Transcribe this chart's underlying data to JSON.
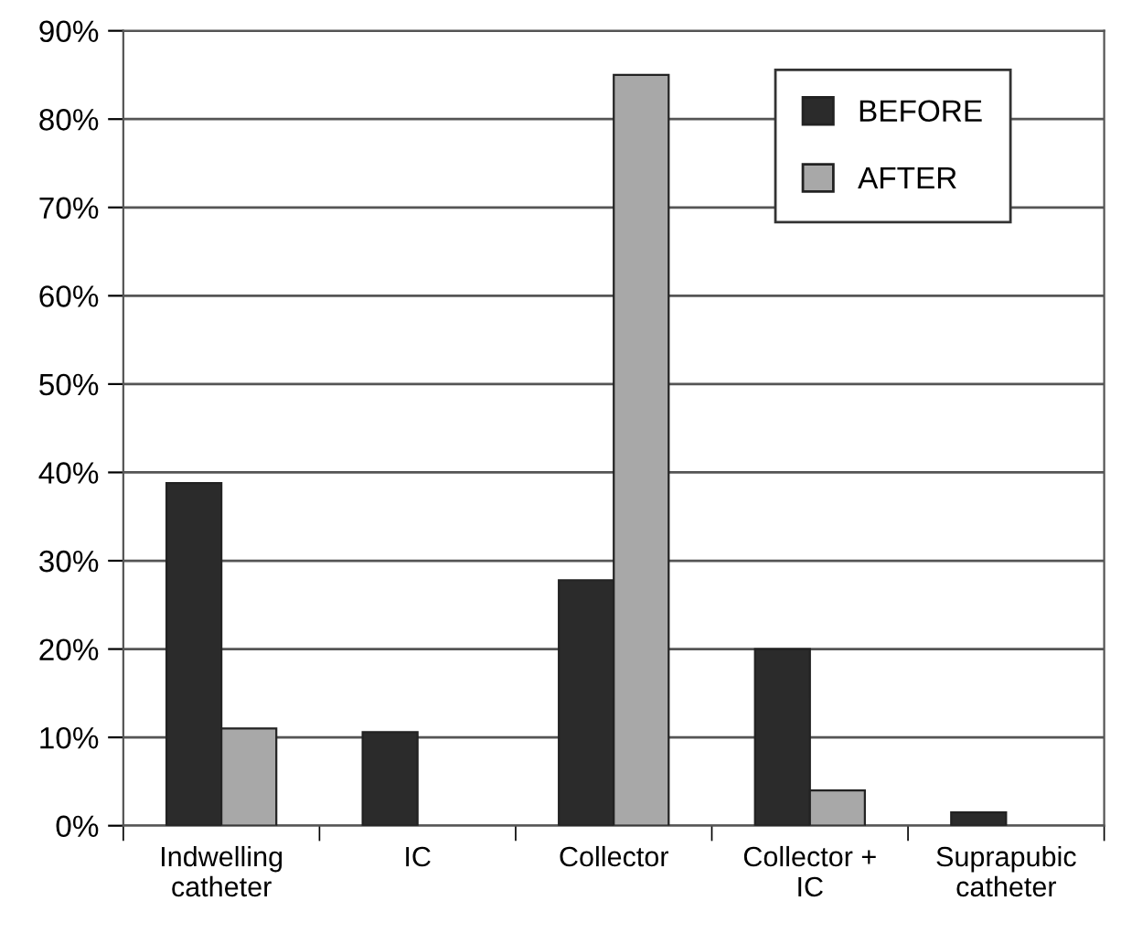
{
  "chart_data": {
    "type": "bar",
    "categories": [
      "Indwelling\ncatheter",
      "IC",
      "Collector",
      "Collector +\nIC",
      "Suprapubic\ncatheter"
    ],
    "series": [
      {
        "name": "BEFORE",
        "color": "#2b2b2b",
        "values": [
          38.8,
          10.6,
          27.8,
          20,
          1.5
        ]
      },
      {
        "name": "AFTER",
        "color": "#a8a8a8",
        "values": [
          11,
          0,
          85,
          4,
          0
        ]
      }
    ],
    "ylim": [
      0,
      90
    ],
    "yticks": [
      {
        "value": 0,
        "label": "0%"
      },
      {
        "value": 10,
        "label": "10%"
      },
      {
        "value": 20,
        "label": "20%"
      },
      {
        "value": 30,
        "label": "30%"
      },
      {
        "value": 40,
        "label": "40%"
      },
      {
        "value": 50,
        "label": "50%"
      },
      {
        "value": 60,
        "label": "60%"
      },
      {
        "value": 70,
        "label": "70%"
      },
      {
        "value": 80,
        "label": "80%"
      },
      {
        "value": 90,
        "label": "90%"
      }
    ],
    "grid": "y",
    "legend": "top right"
  }
}
